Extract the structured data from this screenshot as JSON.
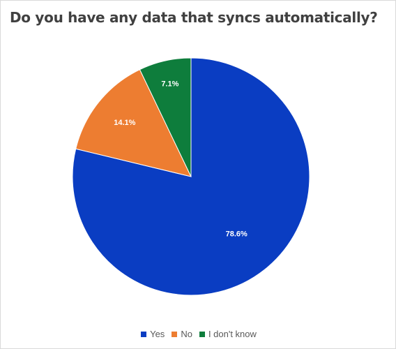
{
  "chart_data": {
    "type": "pie",
    "title": "Do you have any data that syncs automatically?",
    "categories": [
      "Yes",
      "No",
      "I don't know"
    ],
    "values": [
      78.6,
      14.1,
      7.1
    ],
    "labels": [
      "78.6%",
      "14.1%",
      "7.1%"
    ],
    "colors": [
      "#0a3dc2",
      "#ed7d31",
      "#0e7d3c"
    ],
    "legend_position": "bottom"
  }
}
